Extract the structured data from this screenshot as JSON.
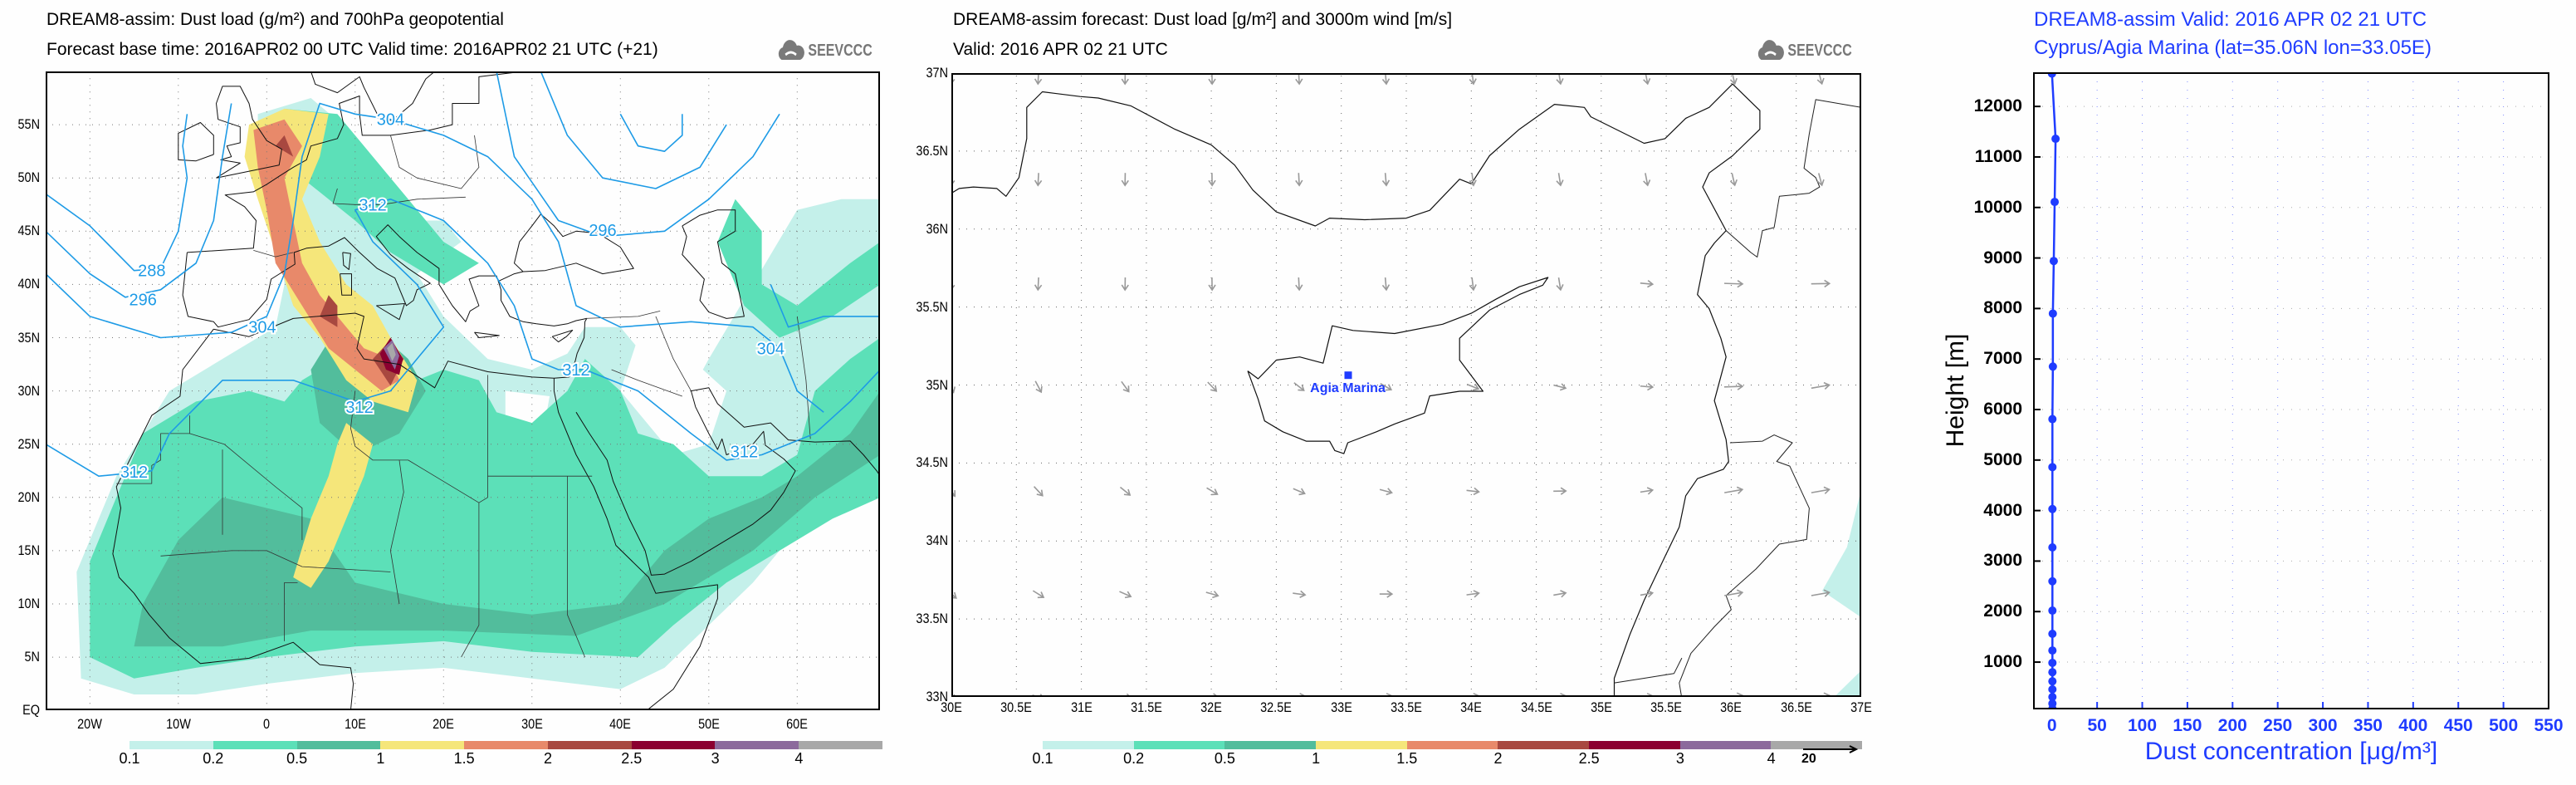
{
  "left_map": {
    "title": "DREAM8-assim: Dust load (g/m²) and 700hPa geopotential",
    "subtitle": "Forecast base time: 2016APR02 00 UTC   Valid time: 2016APR02 21 UTC   (+21)",
    "logo_text": "SEEVCCC",
    "lat_labels": [
      "EQ",
      "5N",
      "10N",
      "15N",
      "20N",
      "25N",
      "30N",
      "35N",
      "40N",
      "45N",
      "50N",
      "55N"
    ],
    "lon_labels": [
      "20W",
      "10W",
      "0",
      "10E",
      "20E",
      "30E",
      "40E",
      "50E",
      "60E"
    ],
    "contour_labels": [
      "288",
      "296",
      "304",
      "304",
      "312",
      "312",
      "312",
      "312",
      "312",
      "296",
      "304"
    ]
  },
  "middle_map": {
    "title": "DREAM8-assim forecast: Dust load [g/m²] and 3000m wind [m/s]",
    "subtitle": "Valid: 2016 APR 02   21 UTC",
    "logo_text": "SEEVCCC",
    "lat_labels": [
      "33N",
      "33.5N",
      "34N",
      "34.5N",
      "35N",
      "35.5N",
      "36N",
      "36.5N",
      "37N"
    ],
    "lon_labels": [
      "30E",
      "30.5E",
      "31E",
      "31.5E",
      "32E",
      "32.5E",
      "33E",
      "33.5E",
      "34E",
      "34.5E",
      "35E",
      "35.5E",
      "36E",
      "36.5E",
      "37E"
    ],
    "station_label": "Agia Marina",
    "wind_legend": "20"
  },
  "colorbar": {
    "labels": [
      "0.1",
      "0.2",
      "0.5",
      "1",
      "1.5",
      "2",
      "2.5",
      "3",
      "4"
    ],
    "colors": [
      "#c4f0ea",
      "#5ce0b8",
      "#52bd9c",
      "#f5e67a",
      "#e8896a",
      "#a84840",
      "#8b0030",
      "#8c6a9c",
      "#a8a8a8"
    ]
  },
  "chart_data": {
    "type": "line",
    "title": "DREAM8-assim  Valid: 2016 APR 02   21 UTC",
    "subtitle": "Cyprus/Agia Marina (lat=35.06N lon=33.05E)",
    "xlabel": "Dust concentration [μg/m³]",
    "ylabel": "Height [m]",
    "xlim": [
      -20,
      550
    ],
    "ylim": [
      80,
      12660
    ],
    "x_ticks": [
      "0",
      "50",
      "100",
      "150",
      "200",
      "250",
      "300",
      "350",
      "400",
      "450",
      "500",
      "550"
    ],
    "y_ticks": [
      "1000",
      "2000",
      "3000",
      "4000",
      "5000",
      "6000",
      "7000",
      "8000",
      "9000",
      "10000",
      "11000",
      "12000"
    ],
    "grid": true,
    "color": "#1f3cff",
    "series": [
      {
        "name": "Agia Marina",
        "height": [
          12650,
          11360,
          10110,
          8940,
          7900,
          6850,
          5810,
          4860,
          4030,
          3270,
          2600,
          2020,
          1560,
          1230,
          985,
          800,
          620,
          460,
          310,
          180,
          80
        ],
        "value": [
          0,
          4,
          3,
          2,
          1,
          1,
          0.5,
          0.5,
          0.5,
          0.5,
          0.5,
          0.5,
          0.5,
          0.5,
          0.5,
          0.5,
          0.5,
          0.5,
          0.5,
          0.5,
          0.5
        ]
      }
    ]
  }
}
